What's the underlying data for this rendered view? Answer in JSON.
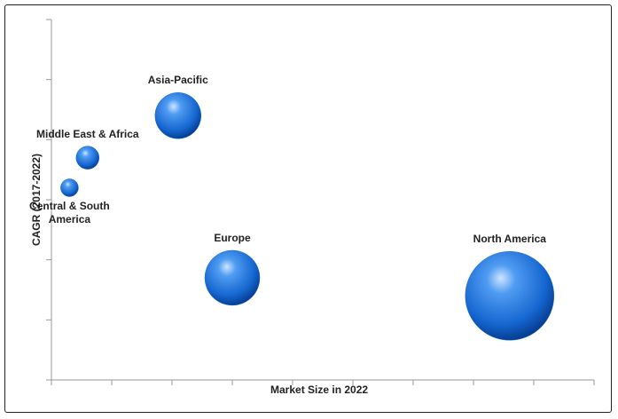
{
  "chart_data": {
    "type": "bubble",
    "x_label": "Market Size in 2022",
    "y_label": "CAGR (2017-2022)",
    "xlim": [
      0,
      9
    ],
    "xticks": [
      0,
      1,
      2,
      3,
      4,
      5,
      6,
      7,
      8,
      9
    ],
    "ylim": [
      0,
      6
    ],
    "yticks": [
      0,
      1,
      2,
      3,
      4,
      5,
      6
    ],
    "color": "#1a6fd6",
    "points": [
      {
        "name": "Asia-Pacific",
        "x": 2.1,
        "y": 4.4,
        "size": 26,
        "label": "above"
      },
      {
        "name": "Middle East & Africa",
        "x": 0.6,
        "y": 3.7,
        "size": 13,
        "label": "above"
      },
      {
        "name": "Central & South America",
        "x": 0.3,
        "y": 3.2,
        "size": 10,
        "label": "below"
      },
      {
        "name": "Europe",
        "x": 3.0,
        "y": 1.7,
        "size": 31,
        "label": "above"
      },
      {
        "name": "North America",
        "x": 7.6,
        "y": 1.4,
        "size": 50,
        "label": "above"
      }
    ]
  }
}
